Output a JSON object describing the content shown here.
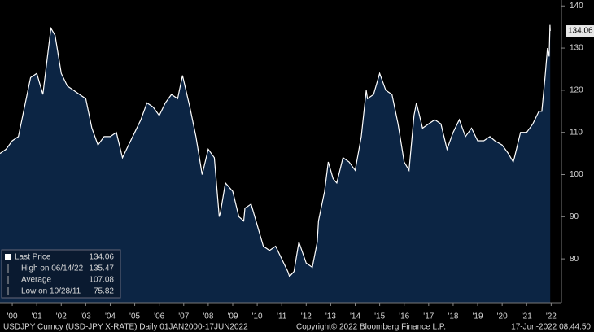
{
  "chart_data": {
    "type": "area",
    "x": [
      2000,
      2000.25,
      2000.5,
      2000.75,
      2001,
      2001.25,
      2001.5,
      2001.75,
      2002,
      2002.08,
      2002.25,
      2002.5,
      2002.75,
      2003,
      2003.25,
      2003.5,
      2003.75,
      2004,
      2004.25,
      2004.5,
      2004.75,
      2005,
      2005.25,
      2005.5,
      2005.75,
      2006,
      2006.25,
      2006.5,
      2006.75,
      2007,
      2007.25,
      2007.45,
      2007.75,
      2008,
      2008.25,
      2008.5,
      2008.75,
      2008.95,
      2009,
      2009.2,
      2009.5,
      2009.75,
      2009.95,
      2010,
      2010.25,
      2010.5,
      2010.75,
      2011,
      2011.25,
      2011.5,
      2011.75,
      2011.82,
      2012,
      2012.2,
      2012.5,
      2012.75,
      2012.95,
      2013,
      2013.25,
      2013.4,
      2013.6,
      2013.75,
      2014,
      2014.25,
      2014.5,
      2014.75,
      2014.95,
      2015,
      2015.25,
      2015.5,
      2015.75,
      2016,
      2016.25,
      2016.5,
      2016.7,
      2016.9,
      2017,
      2017.25,
      2017.5,
      2017.75,
      2018,
      2018.25,
      2018.5,
      2018.75,
      2019,
      2019.25,
      2019.5,
      2019.75,
      2020,
      2020.2,
      2020.5,
      2020.75,
      2020.95,
      2021,
      2021.25,
      2021.5,
      2021.75,
      2022,
      2022.12,
      2022.25,
      2022.35,
      2022.42,
      2022.45,
      2022.46
    ],
    "series": [
      {
        "name": "Last Price",
        "color": "#ffffff",
        "fill": "#0c2544",
        "values": [
          105,
          106,
          108,
          109,
          116,
          123,
          124,
          119,
          131,
          134.7,
          133,
          124,
          121,
          120,
          119,
          118,
          111,
          107,
          109,
          109,
          110,
          104,
          107,
          110,
          113,
          117,
          116,
          114,
          117,
          119,
          118,
          123.5,
          116,
          109,
          100,
          106,
          104,
          90,
          91,
          98,
          96,
          90,
          89,
          92,
          93,
          88,
          83,
          82,
          83,
          80,
          77,
          75.82,
          77,
          84,
          79,
          78,
          84,
          89,
          96,
          103,
          99,
          98,
          104,
          103,
          101,
          109,
          120,
          118,
          119,
          124,
          120,
          119,
          112,
          103,
          101,
          114,
          117,
          111,
          112,
          113,
          112,
          106,
          110,
          113,
          109,
          111,
          108,
          108,
          109,
          108,
          107,
          105,
          103,
          104,
          110,
          110,
          112,
          115,
          115,
          123,
          130,
          128,
          135.47,
          134.06
        ]
      }
    ],
    "xlim": [
      2000,
      2022.92
    ],
    "xticks": [
      {
        "value": 2000.5,
        "label": "'00"
      },
      {
        "value": 2001.5,
        "label": "'01"
      },
      {
        "value": 2002.5,
        "label": "'02"
      },
      {
        "value": 2003.5,
        "label": "'03"
      },
      {
        "value": 2004.5,
        "label": "'04"
      },
      {
        "value": 2005.5,
        "label": "'05"
      },
      {
        "value": 2006.5,
        "label": "'06"
      },
      {
        "value": 2007.5,
        "label": "'07"
      },
      {
        "value": 2008.5,
        "label": "'08"
      },
      {
        "value": 2009.5,
        "label": "'09"
      },
      {
        "value": 2010.5,
        "label": "'10"
      },
      {
        "value": 2011.5,
        "label": "'11"
      },
      {
        "value": 2012.5,
        "label": "'12"
      },
      {
        "value": 2013.5,
        "label": "'13"
      },
      {
        "value": 2014.5,
        "label": "'14"
      },
      {
        "value": 2015.5,
        "label": "'15"
      },
      {
        "value": 2016.5,
        "label": "'16"
      },
      {
        "value": 2017.5,
        "label": "'17"
      },
      {
        "value": 2018.5,
        "label": "'18"
      },
      {
        "value": 2019.5,
        "label": "'19"
      },
      {
        "value": 2020.5,
        "label": "'20"
      },
      {
        "value": 2021.5,
        "label": "'21"
      },
      {
        "value": 2022.5,
        "label": "'22"
      }
    ],
    "ylim": [
      69.6,
      141.4
    ],
    "yticks": [
      80,
      90,
      100,
      110,
      120,
      130,
      140
    ],
    "grid": false,
    "legend_stats": [
      {
        "label": "Last Price",
        "value": 134.06
      },
      {
        "label": "High on 06/14/22",
        "value": 135.47
      },
      {
        "label": "Average",
        "value": 107.08
      },
      {
        "label": "Low on 10/28/11",
        "value": 75.82
      }
    ],
    "footer_left": "USDJPY Curncy (USD-JPY X-RATE)  Daily 01JAN2000-17JUN2022",
    "footer_center": "Copyright© 2022 Bloomberg Finance L.P.",
    "footer_right": "17-Jun-2022 08:44:50"
  }
}
